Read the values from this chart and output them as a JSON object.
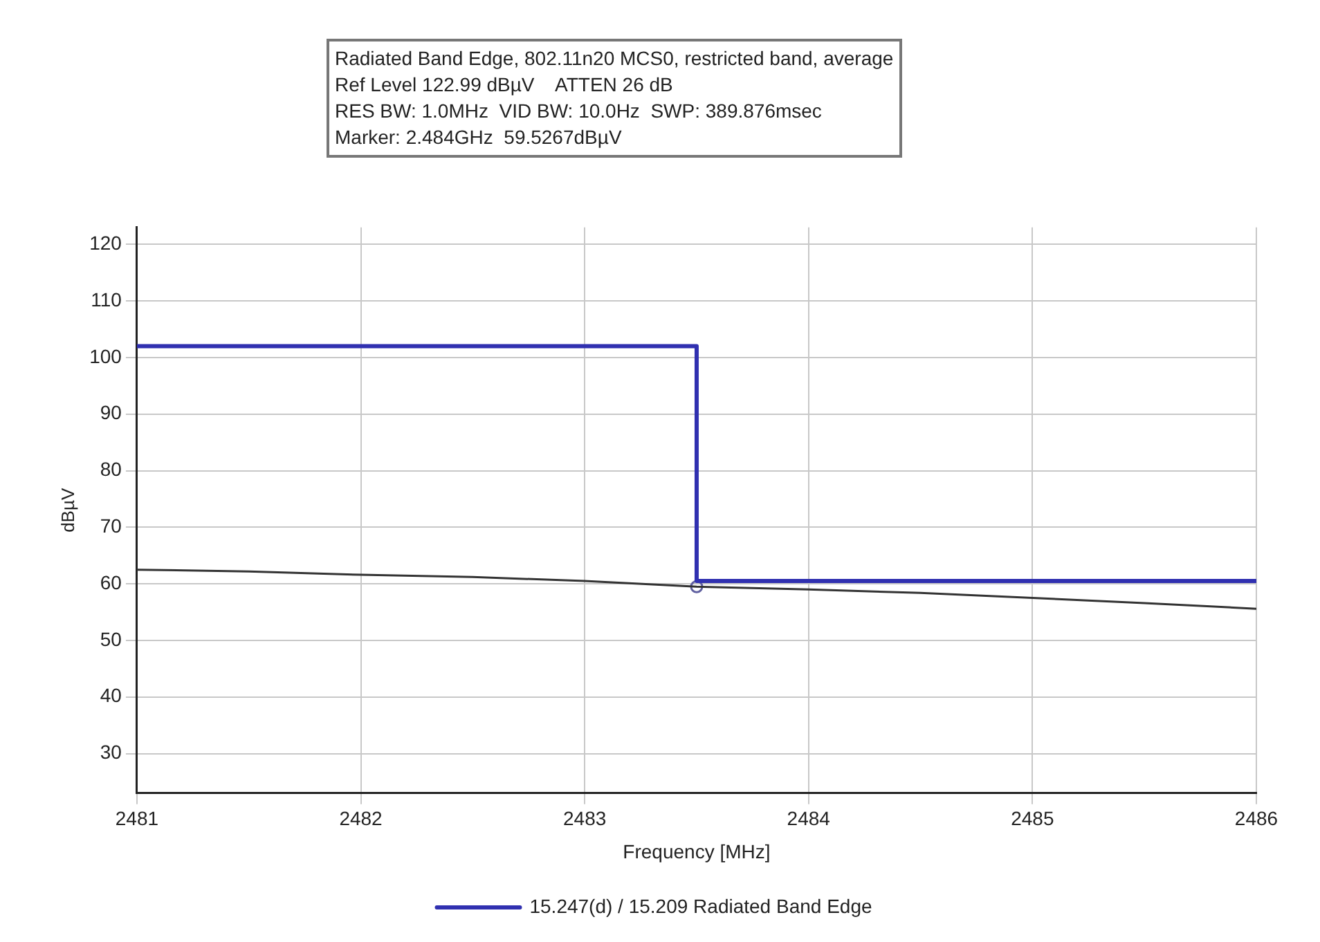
{
  "chart_data": {
    "type": "line",
    "title": "Radiated Band Edge, 802.11n20 MCS0, restricted band, average",
    "annotations": [
      "Ref Level 122.99 dBµV    ATTEN 26 dB",
      "RES BW: 1.0MHz  VID BW: 10.0Hz  SWP: 389.876msec",
      "Marker: 2.484GHz  59.5267dBµV"
    ],
    "xlabel": "Frequency [MHz]",
    "ylabel": "dBµV",
    "xlim": [
      2481,
      2486
    ],
    "xticks": [
      2481,
      2482,
      2483,
      2484,
      2485,
      2486
    ],
    "ylim": [
      23,
      123
    ],
    "yticks": [
      30,
      40,
      50,
      60,
      70,
      80,
      90,
      100,
      110,
      120
    ],
    "grid": true,
    "legend": "bottom",
    "marker": "none",
    "line_style": "solid",
    "series": [
      {
        "name": "15.247(d) / 15.209 Radiated Band Edge",
        "color": "#3030b0",
        "x": [
          2481,
          2483.5,
          2483.5,
          2486
        ],
        "values": [
          102,
          102,
          60.5,
          60.5
        ]
      },
      {
        "color": "#333333",
        "x": [
          2481,
          2481.5,
          2482,
          2482.5,
          2483,
          2483.5,
          2484,
          2484.5,
          2485,
          2485.5,
          2486
        ],
        "values": [
          62.5,
          62.2,
          61.6,
          61.2,
          60.5,
          59.5,
          59.0,
          58.4,
          57.5,
          56.6,
          55.6
        ]
      },
      {
        "type": "scatter",
        "marker": "circle",
        "color": "#6060a0",
        "x": [
          2483.5
        ],
        "values": [
          59.5
        ]
      }
    ]
  }
}
